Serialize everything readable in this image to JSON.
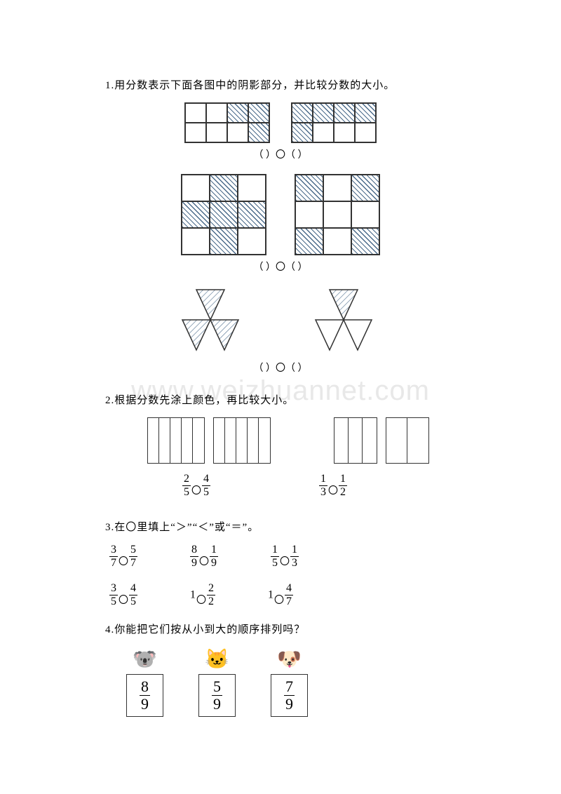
{
  "watermark": "www.weizhuannet.com",
  "q1": {
    "text": "1.用分数表示下面各图中的阴影部分，并比较分数的大小。",
    "answer_template": "（        ）〇（        ）",
    "row1": {
      "left_shaded": [
        0,
        0,
        1,
        1,
        0,
        0,
        0,
        1
      ],
      "right_shaded": [
        1,
        1,
        1,
        1,
        1,
        0,
        0,
        0
      ]
    },
    "row2": {
      "left_shaded": [
        0,
        1,
        0,
        1,
        1,
        1,
        0,
        1,
        0
      ],
      "right_shaded": [
        1,
        0,
        1,
        0,
        0,
        0,
        1,
        0,
        1
      ]
    },
    "row3": {
      "left_shaded": [
        1,
        1,
        1
      ],
      "right_shaded": [
        1,
        0,
        0
      ]
    }
  },
  "q2": {
    "text": "2.根据分数先涂上颜色，再比较大小。",
    "cmp1": {
      "a_num": "2",
      "a_den": "5",
      "b_num": "4",
      "b_den": "5"
    },
    "cmp2": {
      "a_num": "1",
      "a_den": "3",
      "b_num": "1",
      "b_den": "2"
    }
  },
  "q3": {
    "text": "3.在〇里填上“＞”“＜”或“＝”。",
    "row1": [
      {
        "a_num": "3",
        "a_den": "7",
        "b_num": "5",
        "b_den": "7"
      },
      {
        "a_num": "8",
        "a_den": "9",
        "b_num": "1",
        "b_den": "9"
      },
      {
        "a_num": "1",
        "a_den": "5",
        "b_num": "1",
        "b_den": "3"
      }
    ],
    "row2": [
      {
        "a_num": "3",
        "a_den": "5",
        "b_num": "4",
        "b_den": "5"
      },
      {
        "whole_a": "1",
        "b_num": "2",
        "b_den": "2"
      },
      {
        "whole_a": "1",
        "b_num": "4",
        "b_den": "7"
      }
    ]
  },
  "q4": {
    "text": "4.你能把它们按从小到大的顺序排列吗？",
    "items": [
      {
        "icon": "🐨",
        "color": "#9a9aa5",
        "num": "8",
        "den": "9"
      },
      {
        "icon": "🐱",
        "color": "#7aa0c0",
        "num": "5",
        "den": "9"
      },
      {
        "icon": "🐶",
        "color": "#5070c0",
        "num": "7",
        "den": "9"
      }
    ]
  }
}
